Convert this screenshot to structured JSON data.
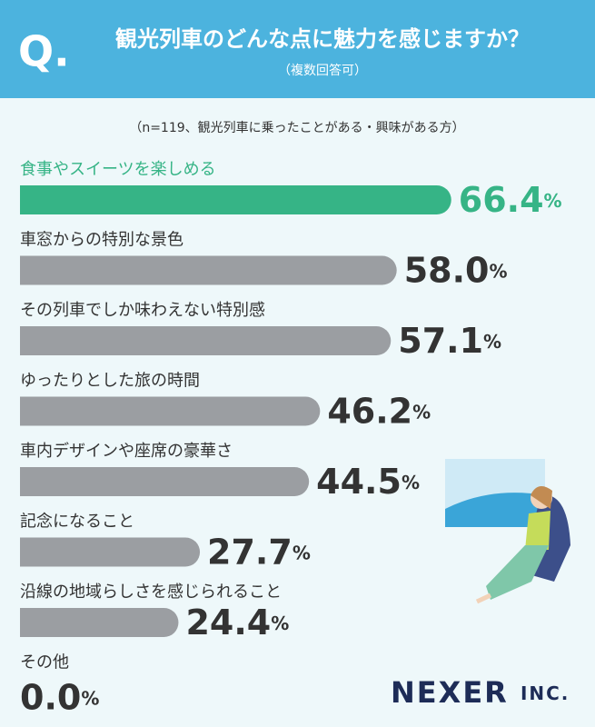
{
  "q_mark": "Q.",
  "brand": "NEXER INC.",
  "chart_data": {
    "type": "bar",
    "orientation": "horizontal",
    "title": "観光列車のどんな点に魅力を感じますか？",
    "subtitle": "（複数回答可）",
    "note": "（n=119、観光列車に乗ったことがある・興味がある方）",
    "categories": [
      "食事やスイーツを楽しめる",
      "車窓からの特別な景色",
      "その列車でしか味わえない特別感",
      "ゆったりとした旅の時間",
      "車内デザインや座席の豪華さ",
      "記念になること",
      "沿線の地域らしさを感じられること",
      "その他"
    ],
    "values": [
      66.4,
      58.0,
      57.1,
      46.2,
      44.5,
      27.7,
      24.4,
      0.0
    ],
    "value_labels": [
      "66.4%",
      "58.0%",
      "57.1%",
      "46.2%",
      "44.5%",
      "27.7%",
      "24.4%",
      "0.0%"
    ],
    "colors": [
      "#36b486",
      "#9b9ea2",
      "#9b9ea2",
      "#9b9ea2",
      "#9b9ea2",
      "#9b9ea2",
      "#9b9ea2",
      "#9b9ea2"
    ]
  }
}
